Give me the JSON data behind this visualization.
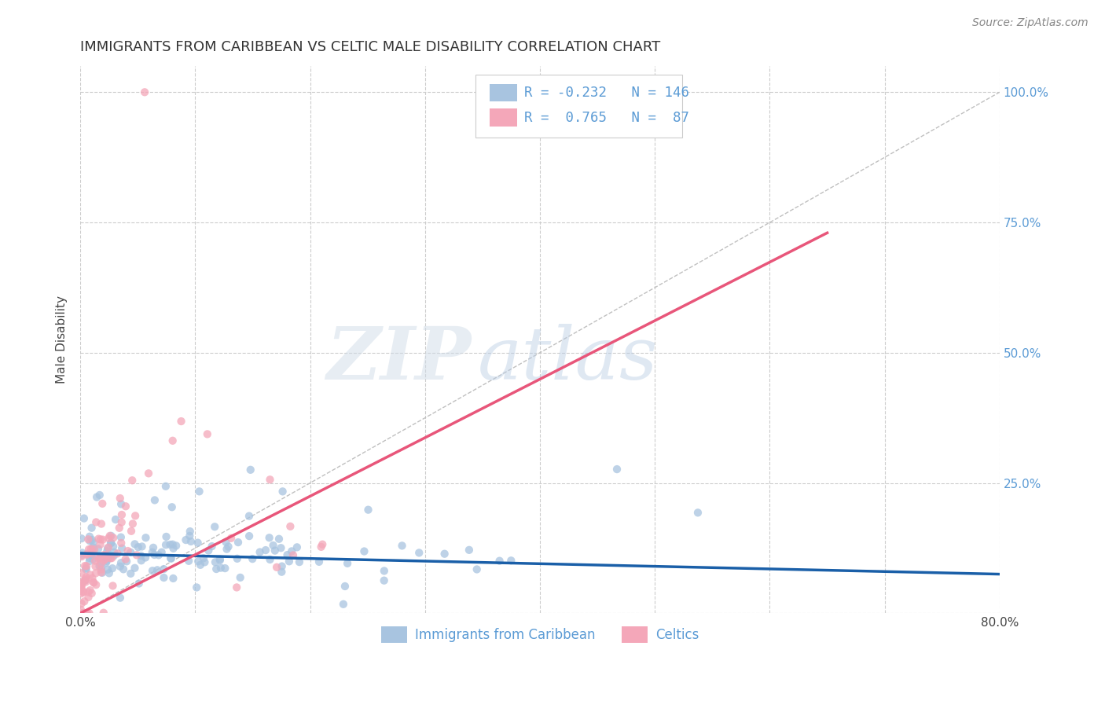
{
  "title": "IMMIGRANTS FROM CARIBBEAN VS CELTIC MALE DISABILITY CORRELATION CHART",
  "source": "Source: ZipAtlas.com",
  "ylabel": "Male Disability",
  "xlim": [
    0.0,
    0.8
  ],
  "ylim": [
    0.0,
    1.05
  ],
  "xticks": [
    0.0,
    0.1,
    0.2,
    0.3,
    0.4,
    0.5,
    0.6,
    0.7,
    0.8
  ],
  "xticklabels": [
    "0.0%",
    "",
    "",
    "",
    "",
    "",
    "",
    "",
    "80.0%"
  ],
  "yticks": [
    0.0,
    0.25,
    0.5,
    0.75,
    1.0
  ],
  "yticklabels_right": [
    "",
    "25.0%",
    "50.0%",
    "75.0%",
    "100.0%"
  ],
  "caribbean_color": "#a8c4e0",
  "celtic_color": "#f4a7b9",
  "caribbean_line_color": "#1a5fa8",
  "celtic_line_color": "#e8567a",
  "legend_label_1": "Immigrants from Caribbean",
  "legend_label_2": "Celtics",
  "R_caribbean": -0.232,
  "N_caribbean": 146,
  "R_celtic": 0.765,
  "N_celtic": 87,
  "watermark_zip": "ZIP",
  "watermark_atlas": "atlas",
  "grid_color": "#cccccc",
  "title_color": "#333333",
  "right_tick_color": "#5b9bd5",
  "background_color": "#ffffff",
  "celtic_line_x": [
    0.0,
    0.65
  ],
  "celtic_line_y": [
    0.0,
    0.73
  ],
  "caribbean_line_x": [
    0.0,
    0.8
  ],
  "caribbean_line_y": [
    0.115,
    0.075
  ],
  "ref_line_x": [
    0.0,
    0.8
  ],
  "ref_line_y": [
    0.0,
    1.0
  ]
}
